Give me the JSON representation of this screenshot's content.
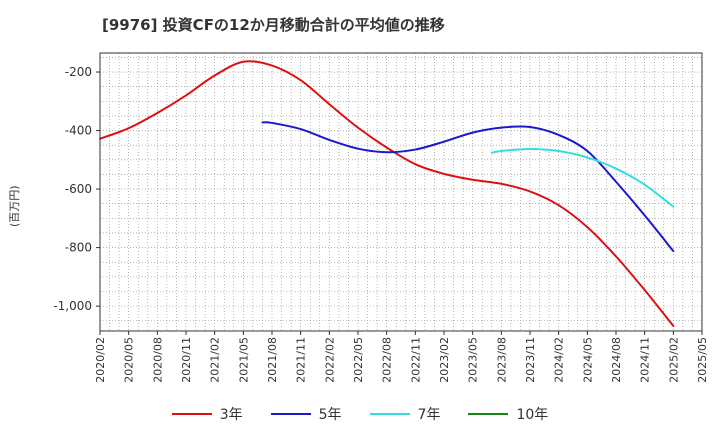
{
  "title": "[9976]  投資CFの12か月移動合計の平均値の推移",
  "ylabel": "(百万円)",
  "chart_data": {
    "type": "line",
    "title": "[9976]  投資CFの12か月移動合計の平均値の推移",
    "ylabel": "(百万円)",
    "xlabel": "",
    "ylim": [
      -1085,
      -135
    ],
    "y_ticks": [
      -200,
      -400,
      -600,
      -800,
      -1000
    ],
    "y_tick_labels": [
      "-200",
      "-400",
      "-600",
      "-800",
      "-1,000"
    ],
    "x_ticks": [
      "2020/02",
      "2020/05",
      "2020/08",
      "2020/11",
      "2021/02",
      "2021/05",
      "2021/08",
      "2021/11",
      "2022/02",
      "2022/05",
      "2022/08",
      "2022/11",
      "2023/02",
      "2023/05",
      "2023/08",
      "2023/11",
      "2024/02",
      "2024/05",
      "2024/08",
      "2024/11",
      "2025/02",
      "2025/05"
    ],
    "grid": true,
    "legend_position": "bottom",
    "series": [
      {
        "name": "3年",
        "color": "#dd1111",
        "x": [
          "2020/02",
          "2020/05",
          "2020/08",
          "2020/11",
          "2021/02",
          "2021/05",
          "2021/08",
          "2021/11",
          "2022/02",
          "2022/05",
          "2022/08",
          "2022/11",
          "2023/02",
          "2023/05",
          "2023/08",
          "2023/11",
          "2024/02",
          "2024/05",
          "2024/08",
          "2024/11",
          "2025/02"
        ],
        "values": [
          -428,
          -392,
          -340,
          -280,
          -212,
          -165,
          -178,
          -228,
          -310,
          -390,
          -458,
          -515,
          -548,
          -568,
          -582,
          -608,
          -655,
          -730,
          -830,
          -945,
          -1068
        ]
      },
      {
        "name": "5年",
        "color": "#1a1acc",
        "x": [
          "2021/07",
          "2021/08",
          "2021/11",
          "2022/02",
          "2022/05",
          "2022/08",
          "2022/11",
          "2023/02",
          "2023/05",
          "2023/08",
          "2023/11",
          "2024/02",
          "2024/05",
          "2024/08",
          "2024/11",
          "2025/02"
        ],
        "values": [
          -372,
          -374,
          -395,
          -432,
          -462,
          -474,
          -465,
          -438,
          -407,
          -390,
          -388,
          -415,
          -470,
          -575,
          -690,
          -812
        ]
      },
      {
        "name": "7年",
        "color": "#33dddd",
        "x": [
          "2023/07",
          "2023/08",
          "2023/11",
          "2024/02",
          "2024/05",
          "2024/08",
          "2024/11",
          "2025/02"
        ],
        "values": [
          -476,
          -470,
          -463,
          -470,
          -492,
          -530,
          -585,
          -660
        ]
      },
      {
        "name": "10年",
        "color": "#118811",
        "x": [],
        "values": []
      }
    ]
  }
}
